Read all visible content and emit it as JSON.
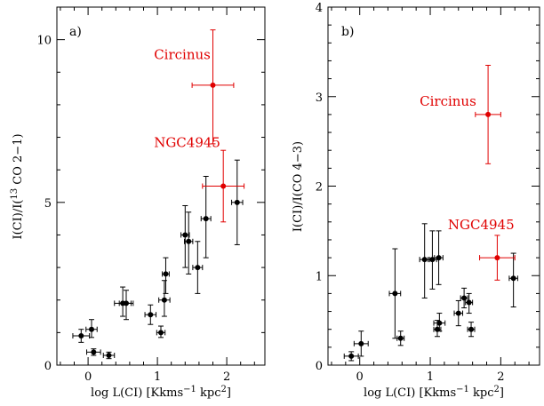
{
  "chart_data": [
    {
      "type": "scatter",
      "panel_label": "a)",
      "xlabel": "log L(CI) [Kkms",
      "xlabel_sup": "−1",
      "xlabel_mid": " kpc",
      "xlabel_sup2": "2",
      "xlabel_end": "]",
      "ylabel": "I(CI)/I(",
      "ylabel_sup": "13",
      "ylabel_end": " CO 2−1)",
      "xlim": [
        -0.45,
        2.55
      ],
      "ylim": [
        0,
        11
      ],
      "xticks": [
        0,
        1,
        2
      ],
      "xtick_labels": [
        "0",
        "1",
        "2"
      ],
      "yticks": [
        0,
        5,
        10
      ],
      "ytick_labels": [
        "0",
        "5",
        "10"
      ],
      "point_color": "#000000",
      "highlight_color": "#e00000",
      "points": [
        {
          "x": -0.1,
          "y": 0.9,
          "xerr": 0.12,
          "ylo": 0.7,
          "yhi": 1.1
        },
        {
          "x": 0.05,
          "y": 1.1,
          "xerr": 0.08,
          "ylo": 0.85,
          "yhi": 1.4
        },
        {
          "x": 0.08,
          "y": 0.4,
          "xerr": 0.1,
          "ylo": 0.3,
          "yhi": 0.5
        },
        {
          "x": 0.3,
          "y": 0.3,
          "xerr": 0.08,
          "ylo": 0.2,
          "yhi": 0.4
        },
        {
          "x": 0.5,
          "y": 1.9,
          "xerr": 0.12,
          "ylo": 1.5,
          "yhi": 2.4
        },
        {
          "x": 0.55,
          "y": 1.9,
          "xerr": 0.1,
          "ylo": 1.4,
          "yhi": 2.3
        },
        {
          "x": 0.9,
          "y": 1.55,
          "xerr": 0.08,
          "ylo": 1.25,
          "yhi": 1.85
        },
        {
          "x": 1.05,
          "y": 1.0,
          "xerr": 0.06,
          "ylo": 0.85,
          "yhi": 1.2
        },
        {
          "x": 1.1,
          "y": 2.0,
          "xerr": 0.08,
          "ylo": 1.5,
          "yhi": 2.6
        },
        {
          "x": 1.12,
          "y": 2.8,
          "xerr": 0.05,
          "ylo": 2.2,
          "yhi": 3.3
        },
        {
          "x": 1.4,
          "y": 4.0,
          "xerr": 0.06,
          "ylo": 3.0,
          "yhi": 4.9
        },
        {
          "x": 1.45,
          "y": 3.8,
          "xerr": 0.06,
          "ylo": 2.8,
          "yhi": 4.7
        },
        {
          "x": 1.58,
          "y": 3.0,
          "xerr": 0.07,
          "ylo": 2.2,
          "yhi": 3.8
        },
        {
          "x": 1.7,
          "y": 4.5,
          "xerr": 0.07,
          "ylo": 3.3,
          "yhi": 5.8
        },
        {
          "x": 2.15,
          "y": 5.0,
          "xerr": 0.08,
          "ylo": 3.7,
          "yhi": 6.3
        }
      ],
      "highlights": [
        {
          "name": "Circinus",
          "x": 1.8,
          "y": 8.6,
          "xerr": 0.3,
          "ylo": 6.8,
          "yhi": 10.3,
          "label_x": 0.95,
          "label_y": 9.4
        },
        {
          "name": "NGC4945",
          "x": 1.95,
          "y": 5.5,
          "xerr": 0.3,
          "ylo": 4.4,
          "yhi": 6.6,
          "label_x": 0.95,
          "label_y": 6.7
        }
      ]
    },
    {
      "type": "scatter",
      "panel_label": "b)",
      "xlabel": "log L(CI) [Kkms",
      "xlabel_sup": "−1",
      "xlabel_mid": " kpc",
      "xlabel_sup2": "2",
      "xlabel_end": "]",
      "ylabel": "I(CI)/I(CO 4−3)",
      "xlim": [
        -0.45,
        2.55
      ],
      "ylim": [
        0,
        4
      ],
      "xticks": [
        0,
        1,
        2
      ],
      "xtick_labels": [
        "0",
        "1",
        "2"
      ],
      "yticks": [
        0,
        1,
        2,
        3,
        4
      ],
      "ytick_labels": [
        "0",
        "1",
        "2",
        "3",
        "4"
      ],
      "point_color": "#000000",
      "highlight_color": "#e00000",
      "points": [
        {
          "x": -0.12,
          "y": 0.1,
          "xerr": 0.1,
          "ylo": 0.05,
          "yhi": 0.15
        },
        {
          "x": 0.02,
          "y": 0.24,
          "xerr": 0.1,
          "ylo": 0.1,
          "yhi": 0.38
        },
        {
          "x": 0.5,
          "y": 0.8,
          "xerr": 0.08,
          "ylo": 0.3,
          "yhi": 1.3
        },
        {
          "x": 0.58,
          "y": 0.3,
          "xerr": 0.05,
          "ylo": 0.22,
          "yhi": 0.38
        },
        {
          "x": 0.92,
          "y": 1.18,
          "xerr": 0.07,
          "ylo": 0.75,
          "yhi": 1.58
        },
        {
          "x": 1.03,
          "y": 1.18,
          "xerr": 0.06,
          "ylo": 0.85,
          "yhi": 1.5
        },
        {
          "x": 1.12,
          "y": 1.2,
          "xerr": 0.06,
          "ylo": 0.9,
          "yhi": 1.5
        },
        {
          "x": 1.1,
          "y": 0.4,
          "xerr": 0.05,
          "ylo": 0.32,
          "yhi": 0.5
        },
        {
          "x": 1.13,
          "y": 0.47,
          "xerr": 0.08,
          "ylo": 0.38,
          "yhi": 0.58
        },
        {
          "x": 1.4,
          "y": 0.58,
          "xerr": 0.06,
          "ylo": 0.44,
          "yhi": 0.72
        },
        {
          "x": 1.48,
          "y": 0.75,
          "xerr": 0.05,
          "ylo": 0.64,
          "yhi": 0.86
        },
        {
          "x": 1.55,
          "y": 0.7,
          "xerr": 0.05,
          "ylo": 0.58,
          "yhi": 0.8
        },
        {
          "x": 1.58,
          "y": 0.4,
          "xerr": 0.05,
          "ylo": 0.32,
          "yhi": 0.48
        },
        {
          "x": 2.18,
          "y": 0.97,
          "xerr": 0.06,
          "ylo": 0.65,
          "yhi": 1.25
        }
      ],
      "highlights": [
        {
          "name": "Circinus",
          "x": 1.82,
          "y": 2.8,
          "xerr": 0.18,
          "ylo": 2.25,
          "yhi": 3.35,
          "label_x": 0.85,
          "label_y": 2.9
        },
        {
          "name": "NGC4945",
          "x": 1.95,
          "y": 1.2,
          "xerr": 0.25,
          "ylo": 0.95,
          "yhi": 1.45,
          "label_x": 1.25,
          "label_y": 1.52
        }
      ]
    }
  ]
}
